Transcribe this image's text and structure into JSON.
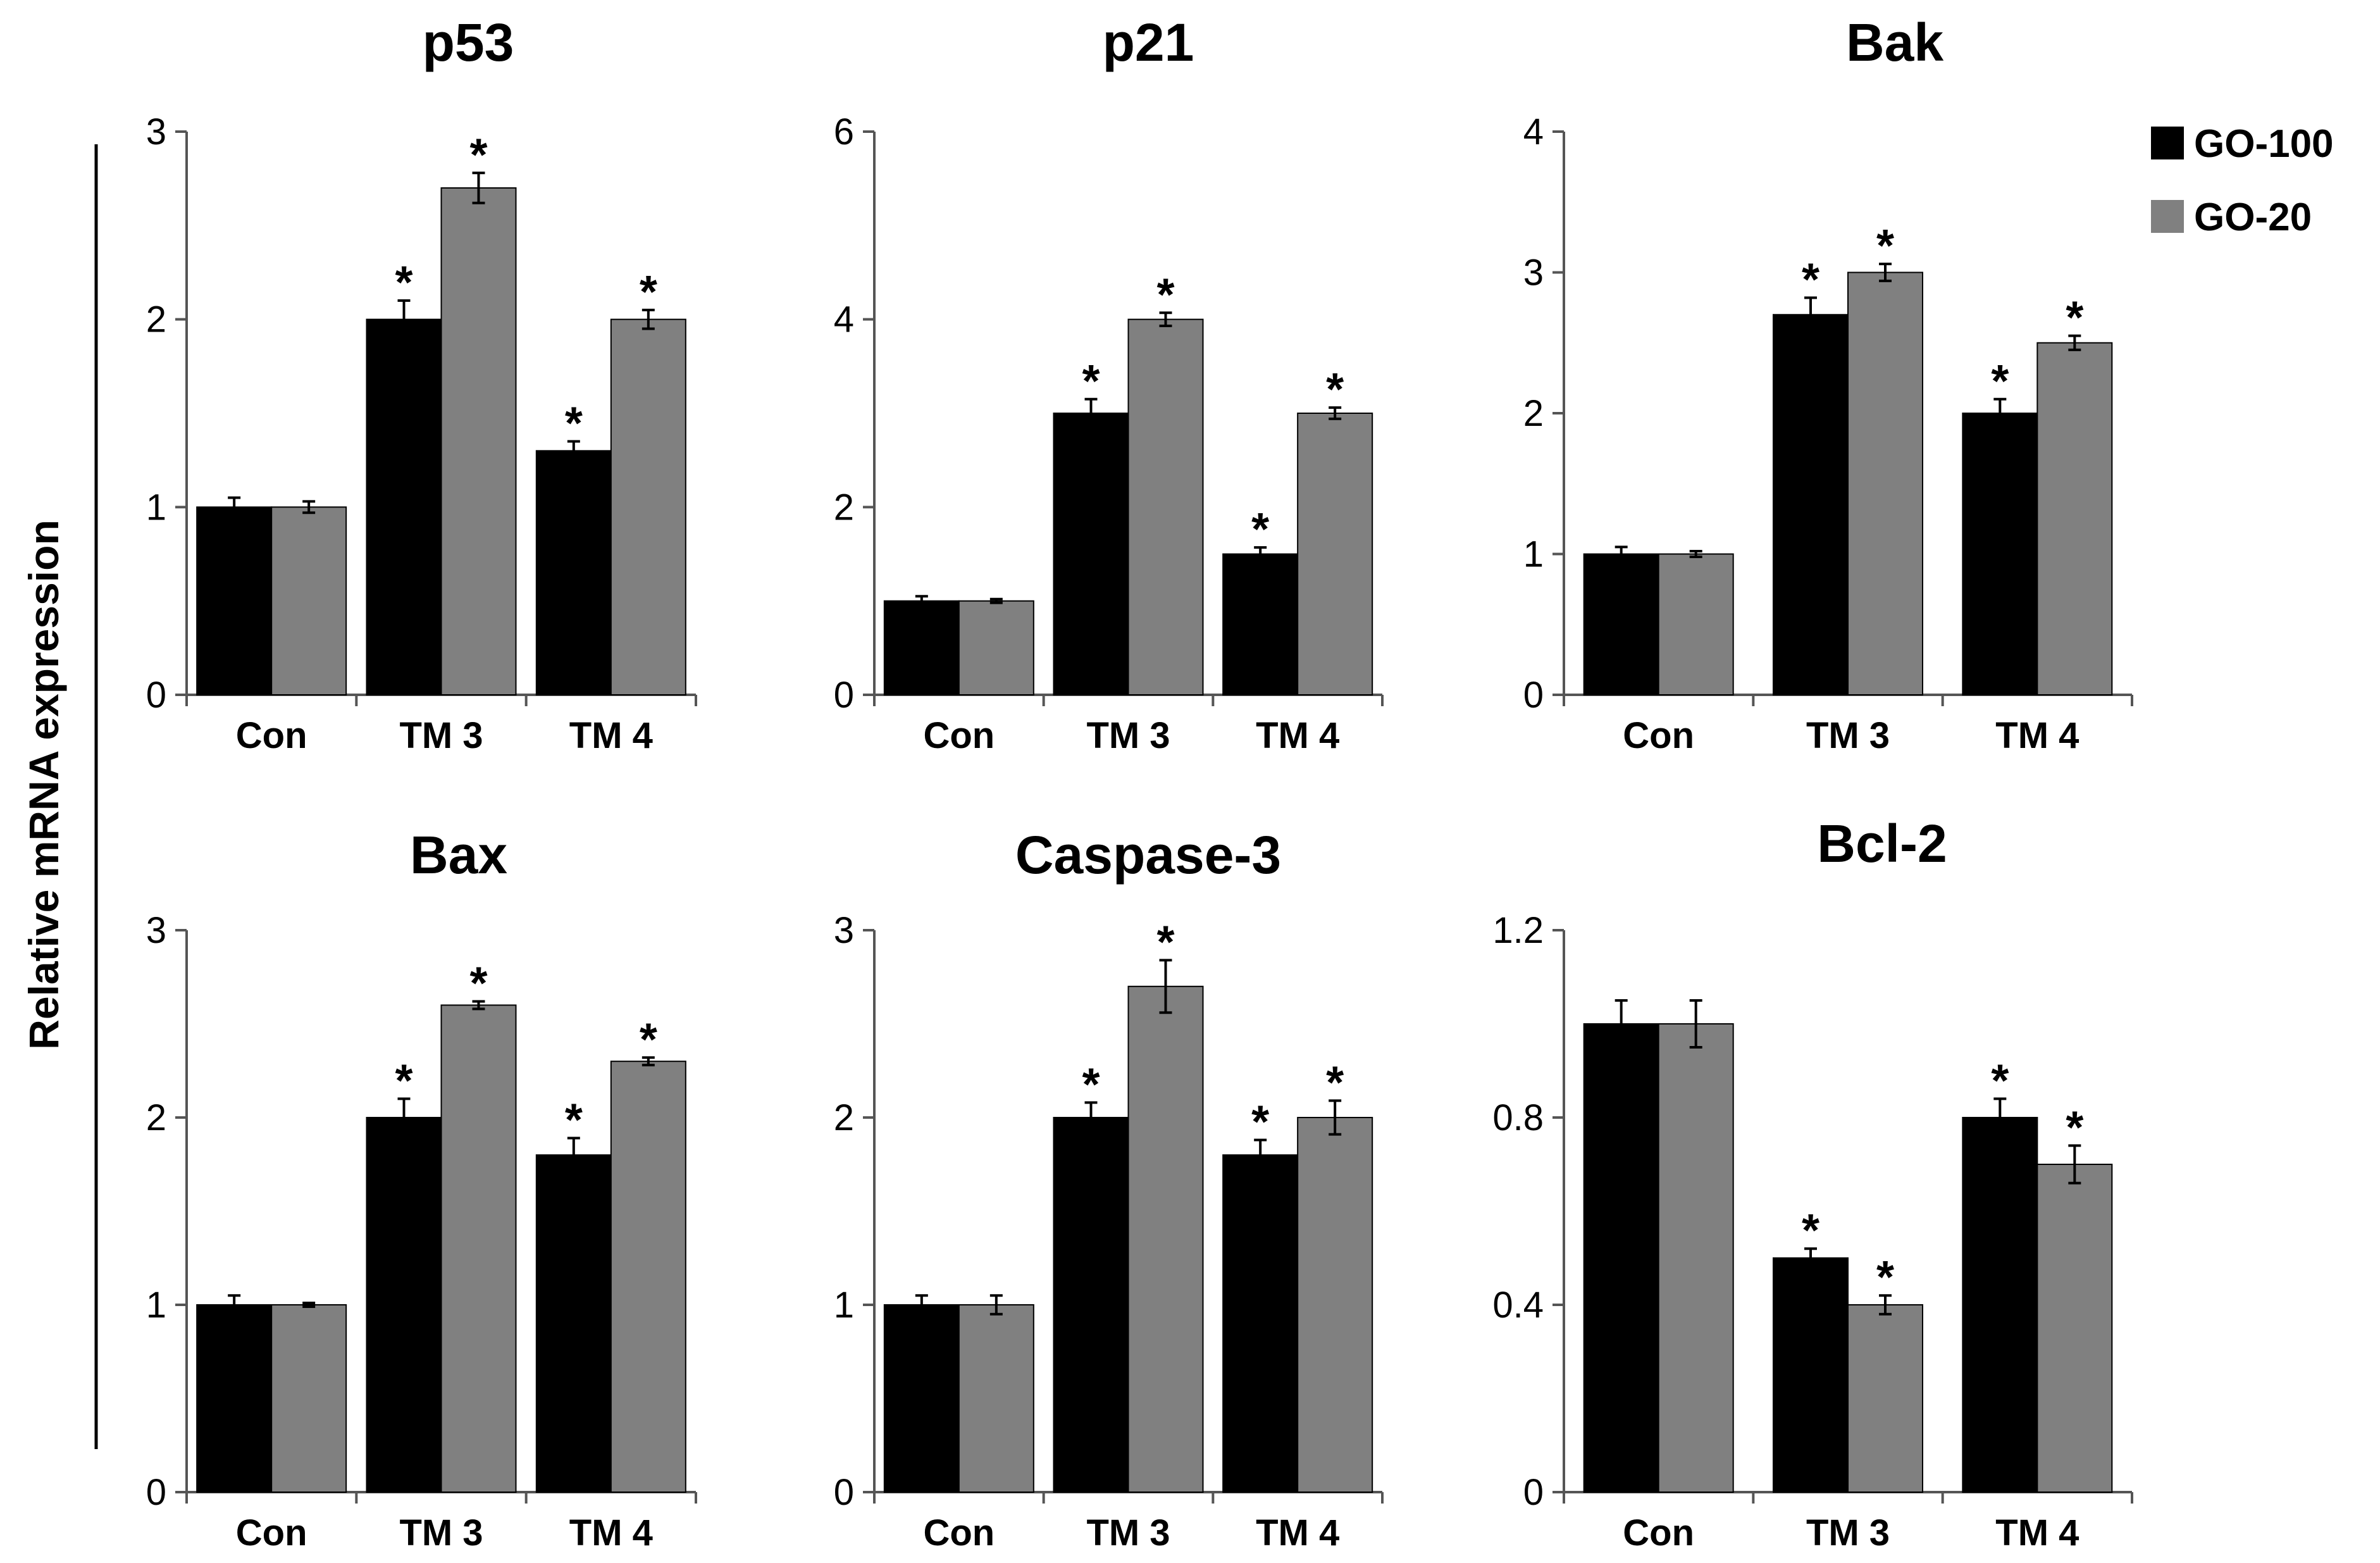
{
  "legend": {
    "items": [
      {
        "label": "GO-100",
        "color": "#000000"
      },
      {
        "label": "GO-20",
        "color": "#808080"
      }
    ],
    "placement": "top-right"
  },
  "figure": {
    "ylabel": "Relative mRNA expression"
  },
  "chart_data": [
    {
      "type": "bar",
      "title": "p53",
      "categories": [
        "Con",
        "TM 3",
        "TM 4"
      ],
      "ylim": [
        0,
        3
      ],
      "yticks": [
        "0",
        "1",
        "2",
        "3"
      ],
      "series": [
        {
          "name": "GO-100",
          "values": [
            1.0,
            2.0,
            1.3
          ],
          "errors": [
            0.05,
            0.1,
            0.05
          ],
          "significant": [
            false,
            true,
            true
          ]
        },
        {
          "name": "GO-20",
          "values": [
            1.0,
            2.7,
            2.0
          ],
          "errors": [
            0.03,
            0.08,
            0.05
          ],
          "significant": [
            false,
            true,
            true
          ]
        }
      ]
    },
    {
      "type": "bar",
      "title": "p21",
      "categories": [
        "Con",
        "TM 3",
        "TM 4"
      ],
      "ylim": [
        0,
        6
      ],
      "yticks": [
        "0",
        "2",
        "4",
        "6"
      ],
      "series": [
        {
          "name": "GO-100",
          "values": [
            1.0,
            3.0,
            1.5
          ],
          "errors": [
            0.05,
            0.15,
            0.07
          ],
          "significant": [
            false,
            true,
            true
          ]
        },
        {
          "name": "GO-20",
          "values": [
            1.0,
            4.0,
            3.0
          ],
          "errors": [
            0.02,
            0.07,
            0.06
          ],
          "significant": [
            false,
            true,
            true
          ]
        }
      ]
    },
    {
      "type": "bar",
      "title": "Bak",
      "categories": [
        "Con",
        "TM 3",
        "TM 4"
      ],
      "ylim": [
        0,
        4
      ],
      "yticks": [
        "0",
        "1",
        "2",
        "3",
        "4"
      ],
      "series": [
        {
          "name": "GO-100",
          "values": [
            1.0,
            2.7,
            2.0
          ],
          "errors": [
            0.05,
            0.12,
            0.1
          ],
          "significant": [
            false,
            true,
            true
          ]
        },
        {
          "name": "GO-20",
          "values": [
            1.0,
            3.0,
            2.5
          ],
          "errors": [
            0.02,
            0.06,
            0.05
          ],
          "significant": [
            false,
            true,
            true
          ]
        }
      ]
    },
    {
      "type": "bar",
      "title": "Bax",
      "categories": [
        "Con",
        "TM 3",
        "TM 4"
      ],
      "ylim": [
        0,
        3
      ],
      "yticks": [
        "0",
        "1",
        "2",
        "3"
      ],
      "series": [
        {
          "name": "GO-100",
          "values": [
            1.0,
            2.0,
            1.8
          ],
          "errors": [
            0.05,
            0.1,
            0.09
          ],
          "significant": [
            false,
            true,
            true
          ]
        },
        {
          "name": "GO-20",
          "values": [
            1.0,
            2.6,
            2.3
          ],
          "errors": [
            0.01,
            0.02,
            0.02
          ],
          "significant": [
            false,
            true,
            true
          ]
        }
      ]
    },
    {
      "type": "bar",
      "title": "Caspase-3",
      "categories": [
        "Con",
        "TM 3",
        "TM 4"
      ],
      "ylim": [
        0,
        3
      ],
      "yticks": [
        "0",
        "1",
        "2",
        "3"
      ],
      "series": [
        {
          "name": "GO-100",
          "values": [
            1.0,
            2.0,
            1.8
          ],
          "errors": [
            0.05,
            0.08,
            0.08
          ],
          "significant": [
            false,
            true,
            true
          ]
        },
        {
          "name": "GO-20",
          "values": [
            1.0,
            2.7,
            2.0
          ],
          "errors": [
            0.05,
            0.14,
            0.09
          ],
          "significant": [
            false,
            true,
            true
          ]
        }
      ]
    },
    {
      "type": "bar",
      "title": "Bcl-2",
      "categories": [
        "Con",
        "TM 3",
        "TM 4"
      ],
      "ylim": [
        0,
        1.2
      ],
      "yticks": [
        "0",
        "0.4",
        "0.8",
        "1.2"
      ],
      "series": [
        {
          "name": "GO-100",
          "values": [
            1.0,
            0.5,
            0.8
          ],
          "errors": [
            0.05,
            0.02,
            0.04
          ],
          "significant": [
            false,
            true,
            true
          ]
        },
        {
          "name": "GO-20",
          "values": [
            1.0,
            0.4,
            0.7
          ],
          "errors": [
            0.05,
            0.02,
            0.04
          ],
          "significant": [
            false,
            true,
            true
          ]
        }
      ]
    }
  ]
}
